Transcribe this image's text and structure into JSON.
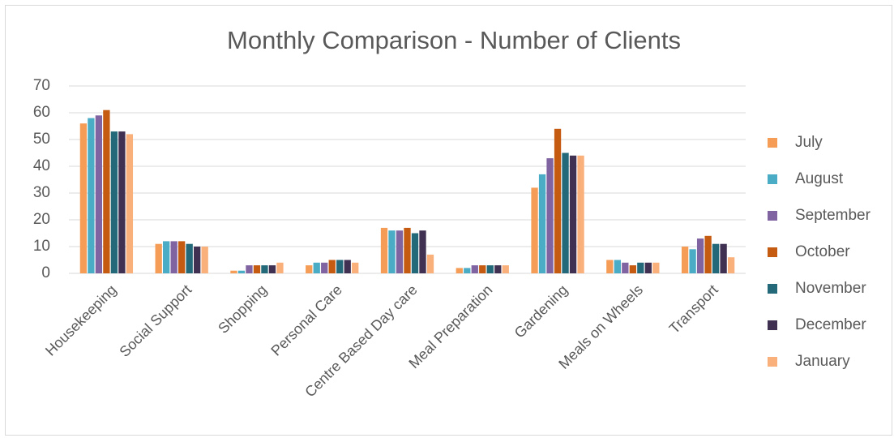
{
  "chart_data": {
    "type": "bar",
    "title": "Monthly Comparison - Number of Clients",
    "categories": [
      "Housekeeping",
      "Social Support",
      "Shopping",
      "Personal Care",
      "Centre Based Day care",
      "Meal Preparation",
      "Gardening",
      "Meals on Wheels",
      "Transport"
    ],
    "series": [
      {
        "name": "July",
        "color": "#f59d56",
        "values": [
          56,
          11,
          1,
          3,
          17,
          2,
          32,
          5,
          10
        ]
      },
      {
        "name": "August",
        "color": "#4bacc6",
        "values": [
          58,
          12,
          1,
          4,
          16,
          2,
          37,
          5,
          9
        ]
      },
      {
        "name": "September",
        "color": "#8064a2",
        "values": [
          59,
          12,
          3,
          4,
          16,
          3,
          43,
          4,
          13
        ]
      },
      {
        "name": "October",
        "color": "#c55a11",
        "values": [
          61,
          12,
          3,
          5,
          17,
          3,
          54,
          3,
          14
        ]
      },
      {
        "name": "November",
        "color": "#23697a",
        "values": [
          53,
          11,
          3,
          5,
          15,
          3,
          45,
          4,
          11
        ]
      },
      {
        "name": "December",
        "color": "#403152",
        "values": [
          53,
          10,
          3,
          5,
          16,
          3,
          44,
          4,
          11
        ]
      },
      {
        "name": "January",
        "color": "#fab07a",
        "values": [
          52,
          10,
          4,
          4,
          7,
          3,
          44,
          4,
          6
        ]
      }
    ],
    "ylim": [
      0,
      70
    ],
    "yticks": [
      0,
      10,
      20,
      30,
      40,
      50,
      60,
      70
    ],
    "grid": true,
    "legend": "right"
  }
}
